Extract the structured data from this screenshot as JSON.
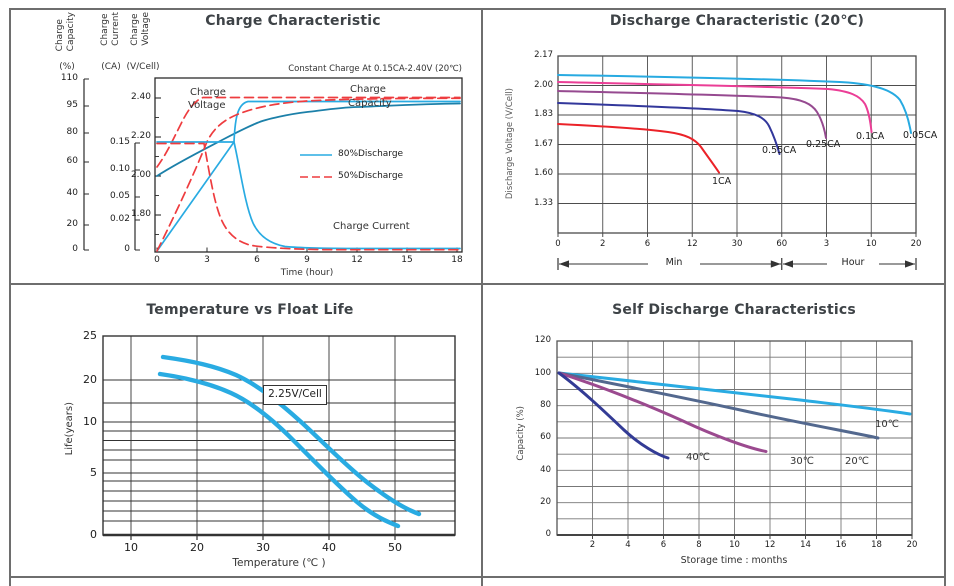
{
  "frame": {
    "color": "#6e6e6e"
  },
  "charts": {
    "charge": {
      "title": "Charge Characteristic",
      "annotation": "Constant Charge At 0.15CA-2.40V  (20℃)",
      "axis_headers": [
        "Charge\nCapacity",
        "Charge\nCurrent",
        "Charge\nVoltage"
      ],
      "axis_units": [
        "(%)",
        "(CA)",
        "(V/Cell)"
      ],
      "x_label": "Time (hour)",
      "x_ticks": [
        "0",
        "3",
        "6",
        "9",
        "12",
        "15",
        "18"
      ],
      "voltage_ticks": [
        "2.40",
        "2.20",
        "2.00",
        "1.80"
      ],
      "capacity_ticks": [
        "110",
        "95",
        "80",
        "60",
        "40",
        "20",
        "0"
      ],
      "current_ticks": [
        "0.15",
        "0.10",
        "0.05",
        "0.02",
        "0"
      ],
      "labels": {
        "voltage_line1": "Charge",
        "voltage_line2": "Voltage",
        "capacity_line1": "Charge",
        "capacity_line2": "Capacity",
        "current": "Charge Current"
      },
      "legend": [
        {
          "label": "80%Discharge",
          "color": "#29ABE2",
          "style": "solid"
        },
        {
          "label": "50%Discharge",
          "color": "#EE3C3F",
          "style": "dashed"
        }
      ],
      "chart_data": {
        "type": "line",
        "xlabel": "Time (hour)",
        "xlim": [
          0,
          18.5
        ],
        "axes": {
          "capacity_pct": [
            0,
            110
          ],
          "current_CA": [
            0,
            0.15
          ],
          "voltage_V": [
            1.6,
            2.5
          ]
        },
        "series": [
          {
            "name": "Charge Voltage 80%Discharge",
            "unit": "V/Cell",
            "color": "#1C80A9",
            "style": "solid",
            "points": [
              [
                0,
                2.0
              ],
              [
                3,
                2.13
              ],
              [
                6,
                2.27
              ],
              [
                9,
                2.325
              ],
              [
                12,
                2.35
              ],
              [
                18,
                2.37
              ]
            ]
          },
          {
            "name": "Charge Voltage 50%Discharge",
            "unit": "V/Cell",
            "color": "#EE3C3F",
            "style": "dashed",
            "points": [
              [
                0,
                2.05
              ],
              [
                1,
                2.17
              ],
              [
                2,
                2.33
              ],
              [
                2.7,
                2.4
              ],
              [
                18,
                2.4
              ]
            ]
          },
          {
            "name": "Charge Capacity 80%Discharge",
            "unit": "%",
            "color": "#29ABE2",
            "style": "solid",
            "points": [
              [
                0,
                0
              ],
              [
                2,
                32
              ],
              [
                4.6,
                74
              ],
              [
                5,
                99
              ],
              [
                6,
                101
              ],
              [
                18,
                101
              ]
            ]
          },
          {
            "name": "Charge Capacity 50%Discharge",
            "unit": "%",
            "color": "#EE3C3F",
            "style": "dashed",
            "points": [
              [
                0,
                0
              ],
              [
                2.9,
                72
              ],
              [
                4,
                85
              ],
              [
                6,
                93
              ],
              [
                9,
                97
              ],
              [
                18,
                99
              ]
            ]
          },
          {
            "name": "Charge Current 80%Discharge",
            "unit": "CA",
            "color": "#29ABE2",
            "style": "solid",
            "points": [
              [
                0,
                0.15
              ],
              [
                4.6,
                0.15
              ],
              [
                6,
                0.07
              ],
              [
                7.5,
                0.03
              ],
              [
                10,
                0.012
              ],
              [
                18,
                0.01
              ]
            ]
          },
          {
            "name": "Charge Current 50%Discharge",
            "unit": "CA",
            "color": "#EE3C3F",
            "style": "dashed",
            "points": [
              [
                0,
                0.15
              ],
              [
                2.9,
                0.15
              ],
              [
                4,
                0.06
              ],
              [
                5,
                0.03
              ],
              [
                6.5,
                0.015
              ],
              [
                18,
                0.01
              ]
            ]
          }
        ]
      }
    },
    "discharge": {
      "title": "Discharge Characteristic (20℃)",
      "y_label": "Discharge Voltage (V/Cell)",
      "y_ticks": [
        "2.17",
        "2.00",
        "1.83",
        "1.67",
        "1.60",
        "1.33"
      ],
      "x_ticks": [
        "0",
        "2",
        "6",
        "12",
        "30",
        "60",
        "3",
        "10",
        "20"
      ],
      "section_labels": {
        "min": "Min",
        "hour": "Hour"
      },
      "curve_labels": [
        "1CA",
        "0.55CA",
        "0.25CA",
        "0.1CA",
        "0.05CA"
      ],
      "chart_data": {
        "type": "line",
        "ylabel": "Discharge Voltage (V/Cell)",
        "x_axis_note": "non-linear time axis: 0,2,6,12,30,60 Min then 3,10,20 Hour",
        "series": [
          {
            "name": "0.05CA",
            "color": "#27AAE1",
            "x_unit": "hour",
            "points": [
              [
                0,
                2.05
              ],
              [
                6,
                2.03
              ],
              [
                10,
                2.01
              ],
              [
                13,
                1.95
              ],
              [
                14.5,
                1.82
              ],
              [
                15.5,
                1.7
              ]
            ]
          },
          {
            "name": "0.1CA",
            "color": "#EB3E96",
            "x_unit": "hour",
            "points": [
              [
                0,
                2.02
              ],
              [
                2,
                2.0
              ],
              [
                4,
                1.97
              ],
              [
                5,
                1.88
              ],
              [
                5.5,
                1.72
              ]
            ]
          },
          {
            "name": "0.25CA",
            "color": "#964A90",
            "x_unit": "hour",
            "points": [
              [
                0,
                1.97
              ],
              [
                1,
                1.95
              ],
              [
                1.8,
                1.9
              ],
              [
                2.1,
                1.8
              ],
              [
                2.3,
                1.7
              ]
            ]
          },
          {
            "name": "0.55CA",
            "color": "#32379B",
            "x_unit": "min",
            "points": [
              [
                0,
                1.9
              ],
              [
                20,
                1.88
              ],
              [
                45,
                1.85
              ],
              [
                55,
                1.78
              ],
              [
                62,
                1.65
              ]
            ]
          },
          {
            "name": "1CA",
            "color": "#EB2228",
            "x_unit": "min",
            "points": [
              [
                0,
                1.78
              ],
              [
                6,
                1.76
              ],
              [
                12,
                1.74
              ],
              [
                20,
                1.68
              ],
              [
                25,
                1.6
              ]
            ]
          }
        ]
      }
    },
    "float_life": {
      "title": "Temperature vs Float Life",
      "x_label": "Temperature (℃ )",
      "y_label": "Life(years)",
      "band_label": "2.25V/Cell",
      "y_ticks": [
        "25",
        "20",
        "10",
        "5",
        "0"
      ],
      "x_ticks": [
        "10",
        "20",
        "30",
        "40",
        "50"
      ],
      "chart_data": {
        "type": "line",
        "xlabel": "Temperature (C)",
        "ylabel": "Life(years)",
        "y_scale": "log-like",
        "ylim": [
          0,
          25
        ],
        "xlim": [
          6,
          59
        ],
        "series": [
          {
            "name": "2.25V/Cell upper",
            "color": "#29ABE2",
            "points": [
              [
                15,
                22.5
              ],
              [
                20,
                20
              ],
              [
                25,
                16
              ],
              [
                30,
                11
              ],
              [
                35,
                7.5
              ],
              [
                40,
                5
              ],
              [
                45,
                3.5
              ],
              [
                50,
                2.7
              ],
              [
                53,
                2.3
              ]
            ]
          },
          {
            "name": "2.25V/Cell lower",
            "color": "#29ABE2",
            "points": [
              [
                15,
                20.5
              ],
              [
                20,
                18
              ],
              [
                25,
                14
              ],
              [
                30,
                9
              ],
              [
                35,
                6
              ],
              [
                40,
                4
              ],
              [
                45,
                2.5
              ],
              [
                50,
                1.5
              ],
              [
                51,
                1.2
              ]
            ]
          }
        ]
      }
    },
    "self_discharge": {
      "title": "Self Discharge Characteristics",
      "x_label": "Storage time : months",
      "y_label": "Capacity (%)",
      "y_ticks": [
        "120",
        "100",
        "80",
        "60",
        "40",
        "20",
        "0"
      ],
      "x_ticks": [
        "2",
        "4",
        "6",
        "8",
        "10",
        "12",
        "14",
        "16",
        "18",
        "20"
      ],
      "curve_labels": [
        "40℃",
        "30℃",
        "20℃",
        "10℃"
      ],
      "chart_data": {
        "type": "line",
        "xlabel": "Storage time : months",
        "ylabel": "Capacity (%)",
        "ylim": [
          0,
          120
        ],
        "xlim": [
          0,
          20
        ],
        "series": [
          {
            "name": "10℃",
            "color": "#29ABE2",
            "points": [
              [
                0,
                100
              ],
              [
                4,
                95
              ],
              [
                8,
                89
              ],
              [
                12,
                84
              ],
              [
                16,
                79
              ],
              [
                20,
                75
              ]
            ]
          },
          {
            "name": "20℃",
            "color": "#53688E",
            "points": [
              [
                0,
                100
              ],
              [
                4,
                92
              ],
              [
                8,
                83
              ],
              [
                12,
                74
              ],
              [
                16,
                65
              ],
              [
                18,
                59
              ]
            ]
          },
          {
            "name": "30℃",
            "color": "#9B4A8F",
            "points": [
              [
                0,
                100
              ],
              [
                2,
                92
              ],
              [
                4,
                83
              ],
              [
                6,
                74
              ],
              [
                8,
                66
              ],
              [
                10,
                58
              ],
              [
                11.8,
                52
              ]
            ]
          },
          {
            "name": "40℃",
            "color": "#333B95",
            "points": [
              [
                0,
                100
              ],
              [
                1,
                91
              ],
              [
                2,
                82
              ],
              [
                3,
                73
              ],
              [
                4,
                64
              ],
              [
                5,
                56
              ],
              [
                6.3,
                48
              ]
            ]
          }
        ]
      }
    }
  }
}
